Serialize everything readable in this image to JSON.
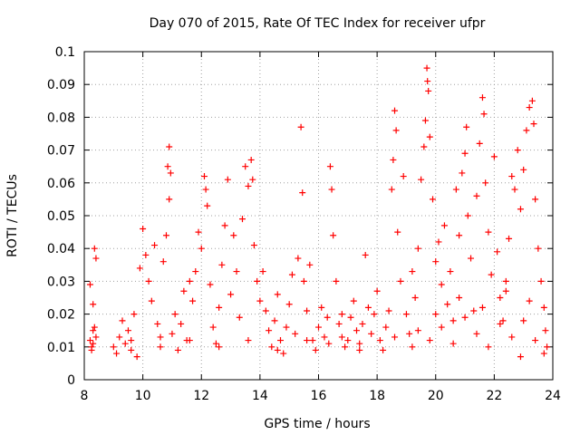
{
  "chart_data": {
    "type": "scatter",
    "title": "Day 070 of 2015, Rate Of TEC Index for receiver ufpr",
    "xlabel": "GPS time / hours",
    "ylabel": "ROTI / TECUs",
    "xlim": [
      8,
      24
    ],
    "ylim": [
      0,
      0.1
    ],
    "x_ticks": [
      "8",
      "10",
      "12",
      "14",
      "16",
      "18",
      "20",
      "22",
      "24"
    ],
    "y_ticks": [
      "0",
      "0.01",
      "0.02",
      "0.03",
      "0.04",
      "0.05",
      "0.06",
      "0.07",
      "0.08",
      "0.09",
      "0.1"
    ],
    "grid": true,
    "marker": "plus",
    "series_color": "#ff0000",
    "series": [
      {
        "points": [
          [
            8.2,
            0.012
          ],
          [
            8.25,
            0.01
          ],
          [
            8.3,
            0.015
          ],
          [
            8.35,
            0.04
          ],
          [
            8.4,
            0.037
          ],
          [
            8.2,
            0.029
          ],
          [
            8.3,
            0.023
          ],
          [
            8.35,
            0.016
          ],
          [
            8.25,
            0.009
          ],
          [
            8.4,
            0.013
          ],
          [
            9.0,
            0.01
          ],
          [
            9.1,
            0.008
          ],
          [
            9.2,
            0.013
          ],
          [
            9.3,
            0.018
          ],
          [
            9.4,
            0.011
          ],
          [
            9.5,
            0.015
          ],
          [
            9.6,
            0.012
          ],
          [
            9.7,
            0.02
          ],
          [
            9.8,
            0.007
          ],
          [
            9.9,
            0.034
          ],
          [
            10.0,
            0.046
          ],
          [
            10.1,
            0.038
          ],
          [
            10.2,
            0.03
          ],
          [
            10.3,
            0.024
          ],
          [
            10.4,
            0.041
          ],
          [
            10.5,
            0.017
          ],
          [
            10.6,
            0.013
          ],
          [
            10.7,
            0.036
          ],
          [
            10.8,
            0.044
          ],
          [
            10.9,
            0.071
          ],
          [
            10.85,
            0.065
          ],
          [
            10.95,
            0.063
          ],
          [
            10.9,
            0.055
          ],
          [
            11.0,
            0.014
          ],
          [
            11.1,
            0.02
          ],
          [
            11.2,
            0.009
          ],
          [
            11.3,
            0.017
          ],
          [
            11.4,
            0.027
          ],
          [
            11.5,
            0.012
          ],
          [
            11.6,
            0.03
          ],
          [
            11.7,
            0.024
          ],
          [
            11.8,
            0.033
          ],
          [
            11.9,
            0.045
          ],
          [
            12.0,
            0.04
          ],
          [
            12.1,
            0.062
          ],
          [
            12.15,
            0.058
          ],
          [
            12.2,
            0.053
          ],
          [
            12.3,
            0.029
          ],
          [
            12.4,
            0.016
          ],
          [
            12.5,
            0.011
          ],
          [
            12.6,
            0.022
          ],
          [
            12.7,
            0.035
          ],
          [
            12.8,
            0.047
          ],
          [
            12.9,
            0.061
          ],
          [
            13.0,
            0.026
          ],
          [
            13.1,
            0.044
          ],
          [
            13.2,
            0.033
          ],
          [
            13.3,
            0.019
          ],
          [
            13.4,
            0.049
          ],
          [
            13.5,
            0.065
          ],
          [
            13.6,
            0.059
          ],
          [
            13.7,
            0.067
          ],
          [
            13.75,
            0.061
          ],
          [
            13.8,
            0.041
          ],
          [
            13.9,
            0.03
          ],
          [
            14.0,
            0.024
          ],
          [
            14.1,
            0.033
          ],
          [
            14.2,
            0.021
          ],
          [
            14.3,
            0.015
          ],
          [
            14.4,
            0.01
          ],
          [
            14.5,
            0.018
          ],
          [
            14.6,
            0.026
          ],
          [
            14.7,
            0.012
          ],
          [
            14.8,
            0.008
          ],
          [
            14.9,
            0.016
          ],
          [
            15.0,
            0.023
          ],
          [
            15.1,
            0.032
          ],
          [
            15.2,
            0.014
          ],
          [
            15.3,
            0.037
          ],
          [
            15.4,
            0.077
          ],
          [
            15.45,
            0.057
          ],
          [
            15.5,
            0.03
          ],
          [
            15.6,
            0.021
          ],
          [
            15.7,
            0.035
          ],
          [
            15.8,
            0.012
          ],
          [
            15.9,
            0.009
          ],
          [
            16.0,
            0.016
          ],
          [
            16.1,
            0.022
          ],
          [
            16.2,
            0.013
          ],
          [
            16.3,
            0.019
          ],
          [
            16.35,
            0.011
          ],
          [
            16.4,
            0.065
          ],
          [
            16.45,
            0.058
          ],
          [
            16.5,
            0.044
          ],
          [
            16.6,
            0.03
          ],
          [
            16.7,
            0.017
          ],
          [
            16.8,
            0.013
          ],
          [
            16.9,
            0.01
          ],
          [
            17.0,
            0.012
          ],
          [
            17.1,
            0.019
          ],
          [
            17.2,
            0.024
          ],
          [
            17.3,
            0.015
          ],
          [
            17.4,
            0.011
          ],
          [
            17.5,
            0.017
          ],
          [
            17.6,
            0.038
          ],
          [
            17.7,
            0.022
          ],
          [
            17.8,
            0.014
          ],
          [
            17.9,
            0.02
          ],
          [
            18.0,
            0.027
          ],
          [
            18.1,
            0.012
          ],
          [
            18.2,
            0.009
          ],
          [
            18.3,
            0.016
          ],
          [
            18.4,
            0.021
          ],
          [
            18.5,
            0.058
          ],
          [
            18.55,
            0.067
          ],
          [
            18.6,
            0.082
          ],
          [
            18.65,
            0.076
          ],
          [
            18.7,
            0.045
          ],
          [
            18.8,
            0.03
          ],
          [
            18.9,
            0.062
          ],
          [
            19.0,
            0.02
          ],
          [
            19.1,
            0.014
          ],
          [
            19.2,
            0.033
          ],
          [
            19.3,
            0.025
          ],
          [
            19.4,
            0.04
          ],
          [
            19.5,
            0.061
          ],
          [
            19.6,
            0.071
          ],
          [
            19.65,
            0.079
          ],
          [
            19.7,
            0.095
          ],
          [
            19.72,
            0.091
          ],
          [
            19.75,
            0.088
          ],
          [
            19.8,
            0.074
          ],
          [
            19.9,
            0.055
          ],
          [
            20.0,
            0.036
          ],
          [
            20.1,
            0.042
          ],
          [
            20.2,
            0.029
          ],
          [
            20.3,
            0.047
          ],
          [
            20.4,
            0.023
          ],
          [
            20.5,
            0.033
          ],
          [
            20.6,
            0.018
          ],
          [
            20.7,
            0.058
          ],
          [
            20.8,
            0.044
          ],
          [
            20.9,
            0.063
          ],
          [
            21.0,
            0.069
          ],
          [
            21.05,
            0.077
          ],
          [
            21.1,
            0.05
          ],
          [
            21.2,
            0.037
          ],
          [
            21.3,
            0.021
          ],
          [
            21.4,
            0.056
          ],
          [
            21.5,
            0.072
          ],
          [
            21.6,
            0.086
          ],
          [
            21.65,
            0.081
          ],
          [
            21.7,
            0.06
          ],
          [
            21.8,
            0.045
          ],
          [
            21.9,
            0.032
          ],
          [
            22.0,
            0.068
          ],
          [
            22.1,
            0.039
          ],
          [
            22.2,
            0.025
          ],
          [
            22.3,
            0.018
          ],
          [
            22.4,
            0.03
          ],
          [
            22.5,
            0.043
          ],
          [
            22.6,
            0.062
          ],
          [
            22.7,
            0.058
          ],
          [
            22.8,
            0.07
          ],
          [
            22.9,
            0.052
          ],
          [
            23.0,
            0.064
          ],
          [
            23.1,
            0.076
          ],
          [
            23.2,
            0.083
          ],
          [
            23.3,
            0.085
          ],
          [
            23.35,
            0.078
          ],
          [
            23.4,
            0.055
          ],
          [
            23.5,
            0.04
          ],
          [
            23.6,
            0.03
          ],
          [
            23.7,
            0.022
          ],
          [
            23.75,
            0.015
          ],
          [
            23.8,
            0.01
          ],
          [
            19.4,
            0.015
          ],
          [
            19.8,
            0.012
          ],
          [
            20.2,
            0.016
          ],
          [
            20.6,
            0.011
          ],
          [
            21.0,
            0.019
          ],
          [
            21.4,
            0.014
          ],
          [
            21.8,
            0.01
          ],
          [
            22.2,
            0.017
          ],
          [
            22.6,
            0.013
          ],
          [
            23.0,
            0.018
          ],
          [
            23.4,
            0.012
          ],
          [
            23.7,
            0.008
          ],
          [
            19.2,
            0.01
          ],
          [
            20.0,
            0.02
          ],
          [
            20.8,
            0.025
          ],
          [
            21.6,
            0.022
          ],
          [
            22.4,
            0.027
          ],
          [
            23.2,
            0.024
          ],
          [
            18.6,
            0.013
          ],
          [
            17.4,
            0.009
          ],
          [
            16.8,
            0.02
          ],
          [
            15.6,
            0.012
          ],
          [
            14.6,
            0.009
          ],
          [
            13.6,
            0.012
          ],
          [
            12.6,
            0.01
          ],
          [
            11.6,
            0.012
          ],
          [
            10.6,
            0.01
          ],
          [
            9.6,
            0.009
          ],
          [
            8.3,
            0.011
          ],
          [
            22.9,
            0.007
          ]
        ]
      }
    ]
  }
}
